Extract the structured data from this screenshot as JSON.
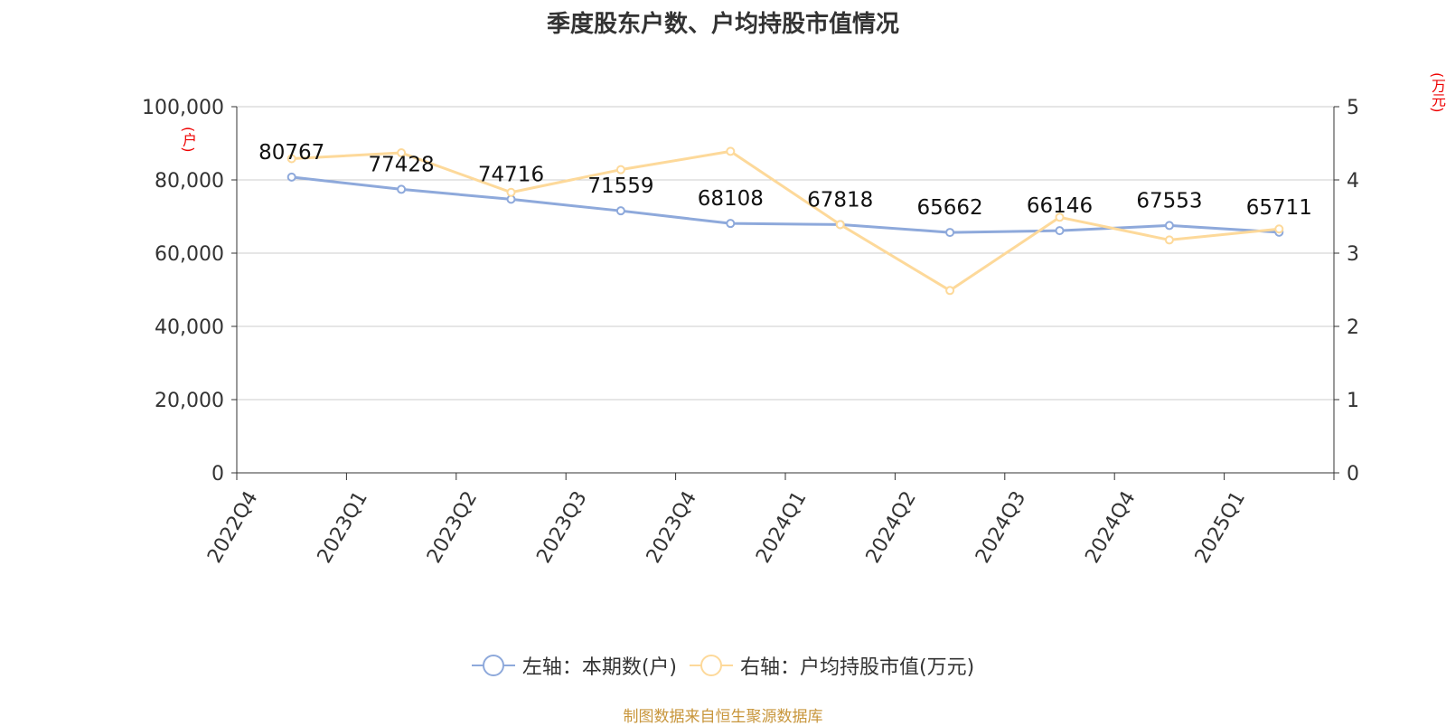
{
  "chart_data": {
    "type": "line",
    "title": "季度股东户数、户均持股市值情况",
    "left_unit": "(户)",
    "right_unit": "(万元)",
    "categories": [
      "2022Q4",
      "2023Q1",
      "2023Q2",
      "2023Q3",
      "2023Q4",
      "2024Q1",
      "2024Q2",
      "2024Q3",
      "2024Q4",
      "2025Q1"
    ],
    "left_axis": {
      "min": 0,
      "max": 100000,
      "ticks": [
        "0",
        "20,000",
        "40,000",
        "60,000",
        "80,000",
        "100,000"
      ]
    },
    "right_axis": {
      "min": 0,
      "max": 5,
      "ticks": [
        "0",
        "1",
        "2",
        "3",
        "4",
        "5"
      ]
    },
    "series": [
      {
        "name": "左轴：本期数(户)",
        "axis": "left",
        "color": "#8ea9db",
        "values": [
          80767,
          77428,
          74716,
          71559,
          68108,
          67818,
          65662,
          66146,
          67553,
          65711
        ],
        "labels": [
          "80767",
          "77428",
          "74716",
          "71559",
          "68108",
          "67818",
          "65662",
          "66146",
          "67553",
          "65711"
        ]
      },
      {
        "name": "右轴：户均持股市值(万元)",
        "axis": "right",
        "color": "#fdd99a",
        "values": [
          4.29,
          4.37,
          3.83,
          4.14,
          4.39,
          3.39,
          2.49,
          3.49,
          3.18,
          3.33
        ]
      }
    ],
    "grid": true,
    "legend_position": "bottom"
  },
  "footer": "制图数据来自恒生聚源数据库"
}
